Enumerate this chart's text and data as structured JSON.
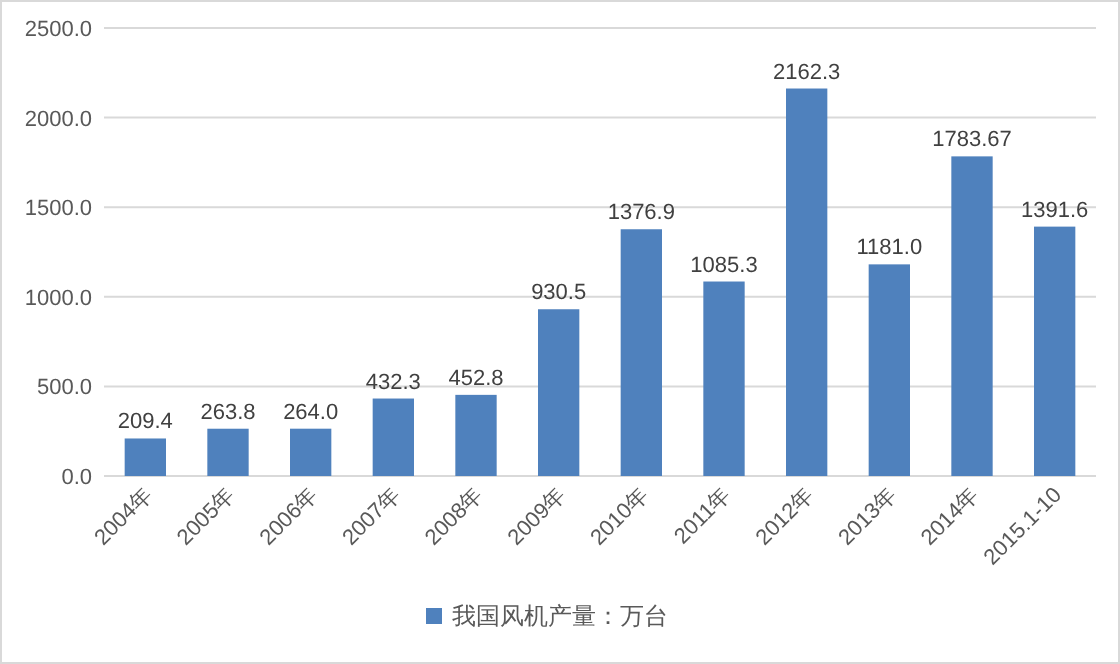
{
  "chart_data": {
    "type": "bar",
    "categories": [
      "2004年",
      "2005年",
      "2006年",
      "2007年",
      "2008年",
      "2009年",
      "2010年",
      "2011年",
      "2012年",
      "2013年",
      "2014年",
      "2015.1-10"
    ],
    "series": [
      {
        "name": "我国风机产量：万台",
        "color": "#4f81bd",
        "values": [
          209.4,
          263.8,
          264.0,
          432.3,
          452.8,
          930.5,
          1376.9,
          1085.3,
          2162.3,
          1181.0,
          1783.67,
          1391.6
        ],
        "value_labels": [
          "209.4",
          "263.8",
          "264.0",
          "432.3",
          "452.8",
          "930.5",
          "1376.9",
          "1085.3",
          "2162.3",
          "1181.0",
          "1783.67",
          "1391.6"
        ]
      }
    ],
    "ylim": [
      0,
      2500
    ],
    "yticks": [
      {
        "value": 0,
        "label": "0.0"
      },
      {
        "value": 500,
        "label": "500.0"
      },
      {
        "value": 1000,
        "label": "1000.0"
      },
      {
        "value": 1500,
        "label": "1500.0"
      },
      {
        "value": 2000,
        "label": "2000.0"
      },
      {
        "value": 2500,
        "label": "2500.0"
      }
    ],
    "grid": "y",
    "legend": "bottom"
  }
}
